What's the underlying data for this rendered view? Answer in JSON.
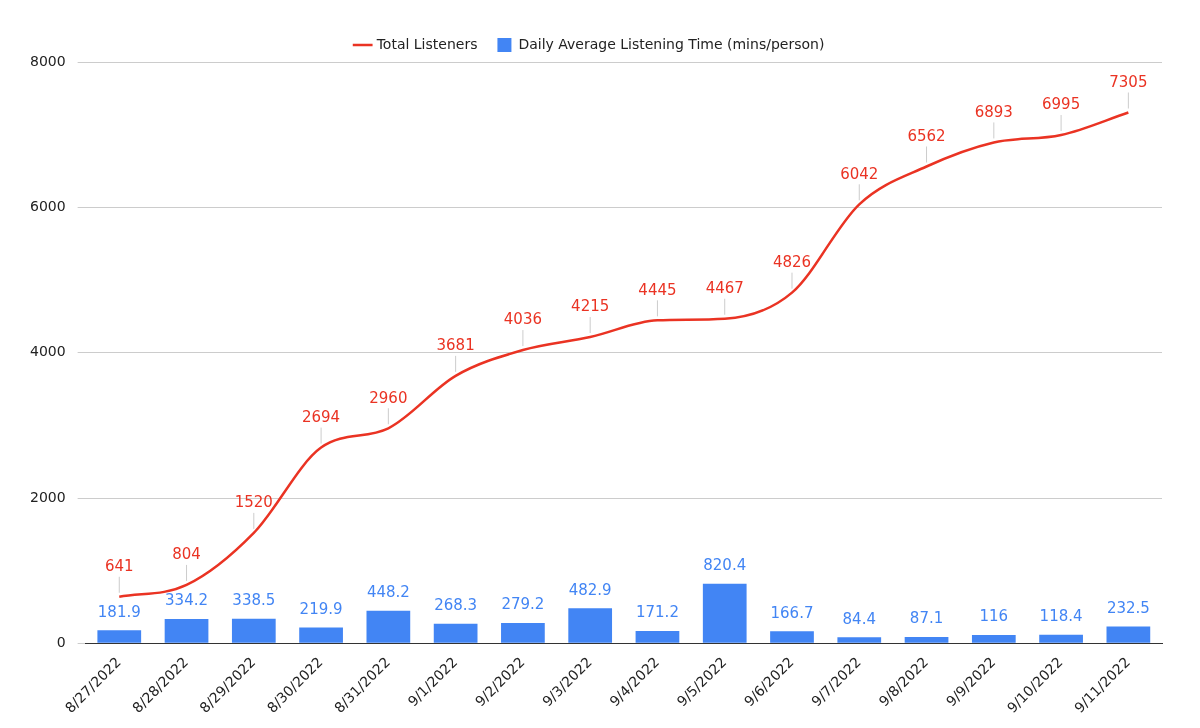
{
  "chart_data": {
    "type": "bar",
    "categories": [
      "8/27/2022",
      "8/28/2022",
      "8/29/2022",
      "8/30/2022",
      "8/31/2022",
      "9/1/2022",
      "9/2/2022",
      "9/3/2022",
      "9/4/2022",
      "9/5/2022",
      "9/6/2022",
      "9/7/2022",
      "9/8/2022",
      "9/9/2022",
      "9/10/2022",
      "9/11/2022"
    ],
    "series": [
      {
        "name": "Total Listeners",
        "type": "line",
        "color": "#ea3323",
        "values": [
          641,
          804,
          1520,
          2694,
          2960,
          3681,
          4036,
          4215,
          4445,
          4467,
          4826,
          6042,
          6562,
          6893,
          6995,
          7305
        ]
      },
      {
        "name": "Daily Average Listening Time (mins/person)",
        "color": "#4285f4",
        "values": [
          181.9,
          334.2,
          338.5,
          219.9,
          448.2,
          268.3,
          279.2,
          482.9,
          171.2,
          820.4,
          166.7,
          84.4,
          87.1,
          116,
          118.4,
          232.5
        ]
      }
    ],
    "ylim": [
      0,
      8000
    ],
    "yticks": [
      0,
      2000,
      4000,
      6000,
      8000
    ],
    "grid": "y",
    "legend": "top",
    "data_labels": true,
    "marker": "none"
  }
}
